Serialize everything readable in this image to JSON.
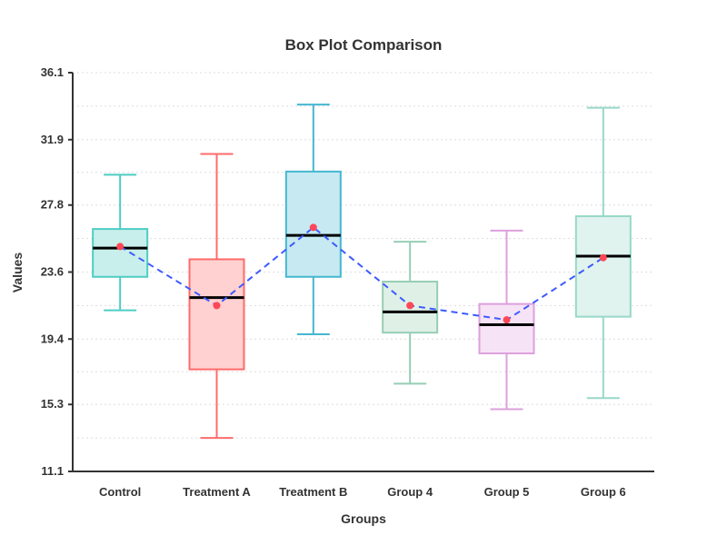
{
  "chart_data": {
    "type": "box",
    "title": "Box Plot Comparison",
    "xlabel": "Groups",
    "ylabel": "Values",
    "ylim": [
      11.1,
      36.1
    ],
    "yticks": [
      "11.1",
      "15.3",
      "19.4",
      "23.6",
      "27.8",
      "31.9",
      "36.1"
    ],
    "grid": true,
    "categories": [
      "Control",
      "Treatment A",
      "Treatment B",
      "Group 4",
      "Group 5",
      "Group 6"
    ],
    "series": [
      {
        "name": "Control",
        "whisker_low": 21.2,
        "q1": 23.3,
        "median": 25.1,
        "q3": 26.3,
        "whisker_high": 29.7,
        "mean": 25.2,
        "color": "#4ecdc4",
        "fill": "#c8efec"
      },
      {
        "name": "Treatment A",
        "whisker_low": 13.2,
        "q1": 17.5,
        "median": 22.0,
        "q3": 24.4,
        "whisker_high": 31.0,
        "mean": 21.5,
        "color": "#ff6b6b",
        "fill": "#ffd1d1"
      },
      {
        "name": "Treatment B",
        "whisker_low": 19.7,
        "q1": 23.3,
        "median": 25.9,
        "q3": 29.9,
        "whisker_high": 34.1,
        "mean": 26.4,
        "color": "#45b7d1",
        "fill": "#c6e9f2"
      },
      {
        "name": "Group 4",
        "whisker_low": 16.6,
        "q1": 19.8,
        "median": 21.1,
        "q3": 23.0,
        "whisker_high": 25.5,
        "mean": 21.5,
        "color": "#96ceb4",
        "fill": "#dff0e7"
      },
      {
        "name": "Group 5",
        "whisker_low": 15.0,
        "q1": 18.5,
        "median": 20.3,
        "q3": 21.6,
        "whisker_high": 26.2,
        "mean": 20.6,
        "color": "#dda0dd",
        "fill": "#f6e3f6"
      },
      {
        "name": "Group 6",
        "whisker_low": 15.7,
        "q1": 20.8,
        "median": 24.6,
        "q3": 27.1,
        "whisker_high": 33.9,
        "mean": 24.5,
        "color": "#98d8c8",
        "fill": "#e0f3ee"
      }
    ],
    "mean_line": {
      "color": "#3d5afe",
      "style": "dashed"
    },
    "mean_marker_color": "#ff4757",
    "median_color": "#000000"
  }
}
